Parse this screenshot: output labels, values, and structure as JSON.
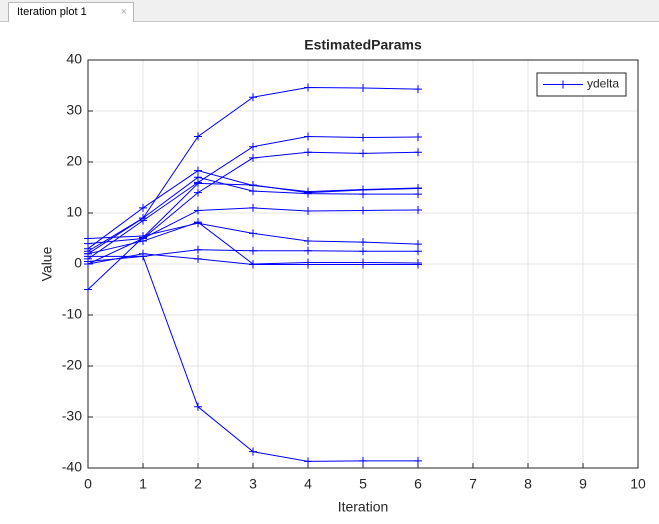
{
  "tab": {
    "title": "Iteration plot 1"
  },
  "chart_data": {
    "type": "line",
    "title": "EstimatedParams",
    "x_label": "Iteration",
    "y_label": "Value",
    "x": [
      0,
      1,
      2,
      3,
      4,
      5,
      6
    ],
    "series": [
      {
        "name": "ydelta",
        "color": "#0000ff",
        "values": [
          2,
          9,
          25,
          32.7,
          34.6,
          34.5,
          34.3
        ]
      },
      {
        "color": "#0000ff",
        "values": [
          1,
          8.5,
          16,
          23,
          25,
          24.8,
          24.9
        ]
      },
      {
        "color": "#0000ff",
        "values": [
          0,
          5,
          14,
          20.8,
          21.9,
          21.7,
          21.9
        ]
      },
      {
        "color": "#0000ff",
        "values": [
          3,
          11,
          18.3,
          15.4,
          14.2,
          14.6,
          14.9
        ]
      },
      {
        "color": "#0000ff",
        "values": [
          2.5,
          9,
          17,
          14.3,
          13.8,
          13.7,
          13.7
        ]
      },
      {
        "color": "#0000ff",
        "values": [
          -5,
          5.2,
          15.8,
          15.5,
          14,
          14.5,
          14.8
        ]
      },
      {
        "color": "#0000ff",
        "values": [
          4,
          5,
          10.5,
          11,
          10.4,
          10.5,
          10.6
        ]
      },
      {
        "color": "#0000ff",
        "values": [
          5,
          5.5,
          8,
          6,
          4.5,
          4.3,
          3.9
        ]
      },
      {
        "color": "#0000ff",
        "values": [
          2,
          4.5,
          8.2,
          0,
          0.3,
          0.3,
          0.2
        ]
      },
      {
        "color": "#0000ff",
        "values": [
          0.5,
          1.5,
          2.8,
          2.6,
          2.6,
          2.5,
          2.5
        ]
      },
      {
        "color": "#0000ff",
        "values": [
          0,
          2,
          1,
          -0.1,
          -0.1,
          -0.1,
          -0.1
        ]
      },
      {
        "color": "#0000ff",
        "values": [
          1.5,
          1.5,
          -28,
          -36.8,
          -38.7,
          -38.6,
          -38.6
        ]
      }
    ],
    "xlim": [
      0,
      10
    ],
    "xticks": [
      0,
      1,
      2,
      3,
      4,
      5,
      6,
      7,
      8,
      9,
      10
    ],
    "ylim": [
      -40,
      40
    ],
    "yticks": [
      -40,
      -30,
      -20,
      -10,
      0,
      10,
      20,
      30,
      40
    ],
    "grid": true,
    "legend": "northeast",
    "marker": "+"
  }
}
